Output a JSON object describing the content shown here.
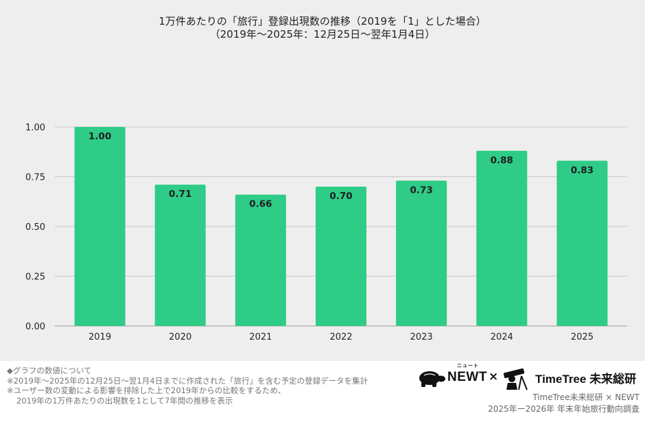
{
  "chart_data": {
    "type": "bar",
    "title": "1万件あたりの「旅行」登録出現数の推移（2019を「1」とした場合）",
    "subtitle": "（2019年〜2025年：12月25日〜翌年1月4日）",
    "categories": [
      "2019",
      "2020",
      "2021",
      "2022",
      "2023",
      "2024",
      "2025"
    ],
    "values": [
      1.0,
      0.71,
      0.66,
      0.7,
      0.73,
      0.88,
      0.83
    ],
    "value_labels": [
      "1.00",
      "0.71",
      "0.66",
      "0.70",
      "0.73",
      "0.88",
      "0.83"
    ],
    "y_ticks": [
      "0.00",
      "0.25",
      "0.50",
      "0.75",
      "1.00"
    ],
    "ylim": [
      0,
      1.0
    ],
    "xlabel": "",
    "ylabel": "",
    "grid": true,
    "bar_color": "#2ecc87",
    "background": "#eeeeee"
  },
  "notes": {
    "heading": "◆グラフの数値について",
    "line1": "※2019年〜2025年の12月25日〜翌1月4日までに作成された「旅行」を含む予定の登録データを集計",
    "line2": "※ユーザー数の変動による影響を排除した上で2019年からの比較をするため、",
    "line3": "2019年の1万件あたりの出現数を1として7年間の推移を表示"
  },
  "logos": {
    "newt": "NEWT",
    "newt_small": "ニュート",
    "times": "×",
    "timetree": "TimeTree 未来総研",
    "newt_icon": "turtle-icon",
    "timetree_icon": "telescope-person-icon"
  },
  "credit": {
    "line1": "TimeTree未来総研 × NEWT",
    "line2": "2025年ー2026年 年末年始旅行動向調査"
  }
}
